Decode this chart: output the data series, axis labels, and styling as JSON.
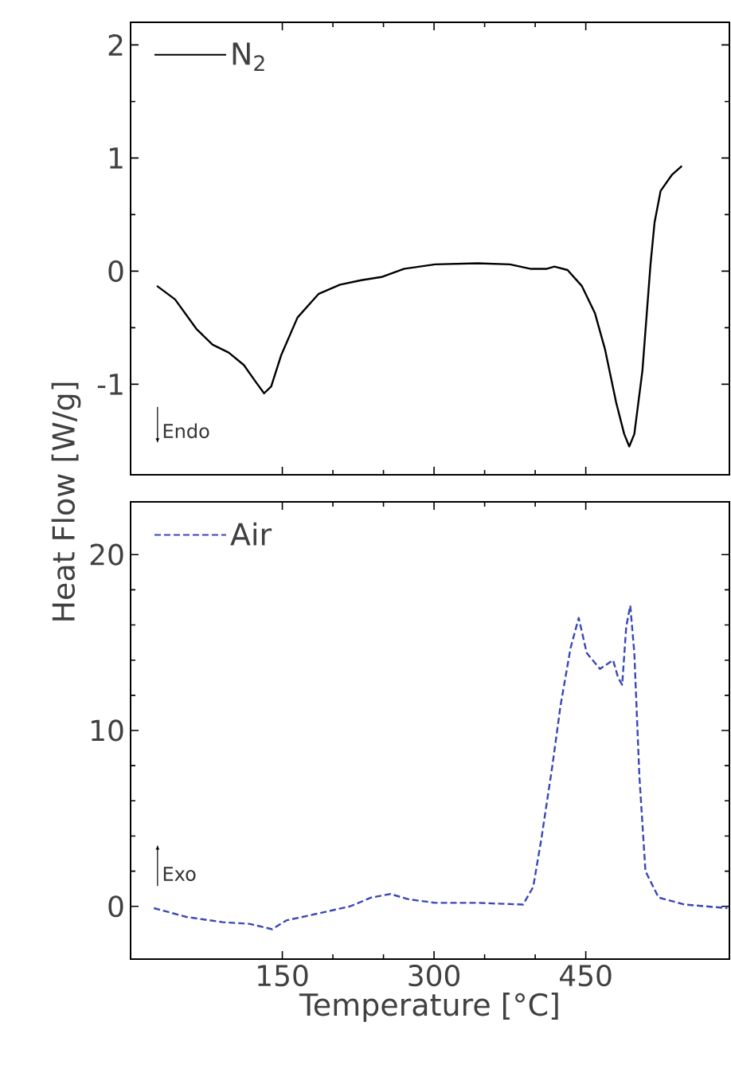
{
  "chart_data": [
    {
      "type": "line",
      "xlim": [
        0,
        592
      ],
      "xticks": [
        150,
        300,
        450
      ],
      "ylim": [
        -1.8,
        2.2
      ],
      "yticks": [
        -1,
        0,
        1,
        2
      ],
      "tick_labels": "y",
      "legend": "top left",
      "marker": "none",
      "grid": false,
      "annotations": [
        "Endo"
      ],
      "series": [
        {
          "name": "N$_{2}$",
          "color": "#000000",
          "line_style": "solid",
          "x": [
            26,
            44,
            65,
            81,
            97,
            112,
            123,
            132,
            139,
            149,
            165,
            186,
            207,
            228,
            249,
            270,
            301,
            343,
            375,
            396,
            411,
            419,
            432,
            446,
            459,
            469,
            480,
            488,
            493,
            498,
            506,
            514,
            518,
            524,
            535,
            545
          ],
          "values": [
            -0.13,
            -0.25,
            -0.51,
            -0.65,
            -0.72,
            -0.83,
            -0.97,
            -1.08,
            -1.02,
            -0.74,
            -0.41,
            -0.2,
            -0.12,
            -0.08,
            -0.05,
            0.02,
            0.06,
            0.07,
            0.06,
            0.02,
            0.02,
            0.04,
            0.01,
            -0.13,
            -0.37,
            -0.69,
            -1.16,
            -1.44,
            -1.55,
            -1.44,
            -0.88,
            0.06,
            0.43,
            0.71,
            0.85,
            0.93
          ]
        }
      ]
    },
    {
      "type": "line",
      "xlim": [
        0,
        592
      ],
      "xticks": [
        150,
        300,
        450
      ],
      "ylim": [
        -3,
        23
      ],
      "yticks": [
        0,
        10,
        20
      ],
      "xlabel": "Temperature [°C]",
      "ylabel": "Heat Flow [W/g]",
      "legend": "top left",
      "marker": "none",
      "grid": false,
      "annotations": [
        "Exo"
      ],
      "series": [
        {
          "name": "Air",
          "color": "#3a47b8",
          "line_style": "dashed",
          "x": [
            23,
            55,
            91,
            118,
            140,
            154,
            186,
            217,
            238,
            257,
            275,
            301,
            343,
            388,
            398,
            406,
            417,
            425,
            435,
            443,
            451,
            464,
            477,
            482,
            486,
            490,
            494,
            498,
            503,
            509,
            522,
            548,
            590
          ],
          "values": [
            -0.1,
            -0.6,
            -0.9,
            -1.0,
            -1.3,
            -0.8,
            -0.4,
            0,
            0.5,
            0.7,
            0.4,
            0.2,
            0.2,
            0.1,
            1.1,
            3.8,
            8.0,
            11.4,
            14.7,
            16.4,
            14.4,
            13.5,
            14.0,
            13.0,
            12.6,
            15.9,
            17.1,
            14.4,
            7.4,
            2.0,
            0.5,
            0.1,
            -0.1
          ]
        }
      ]
    }
  ]
}
